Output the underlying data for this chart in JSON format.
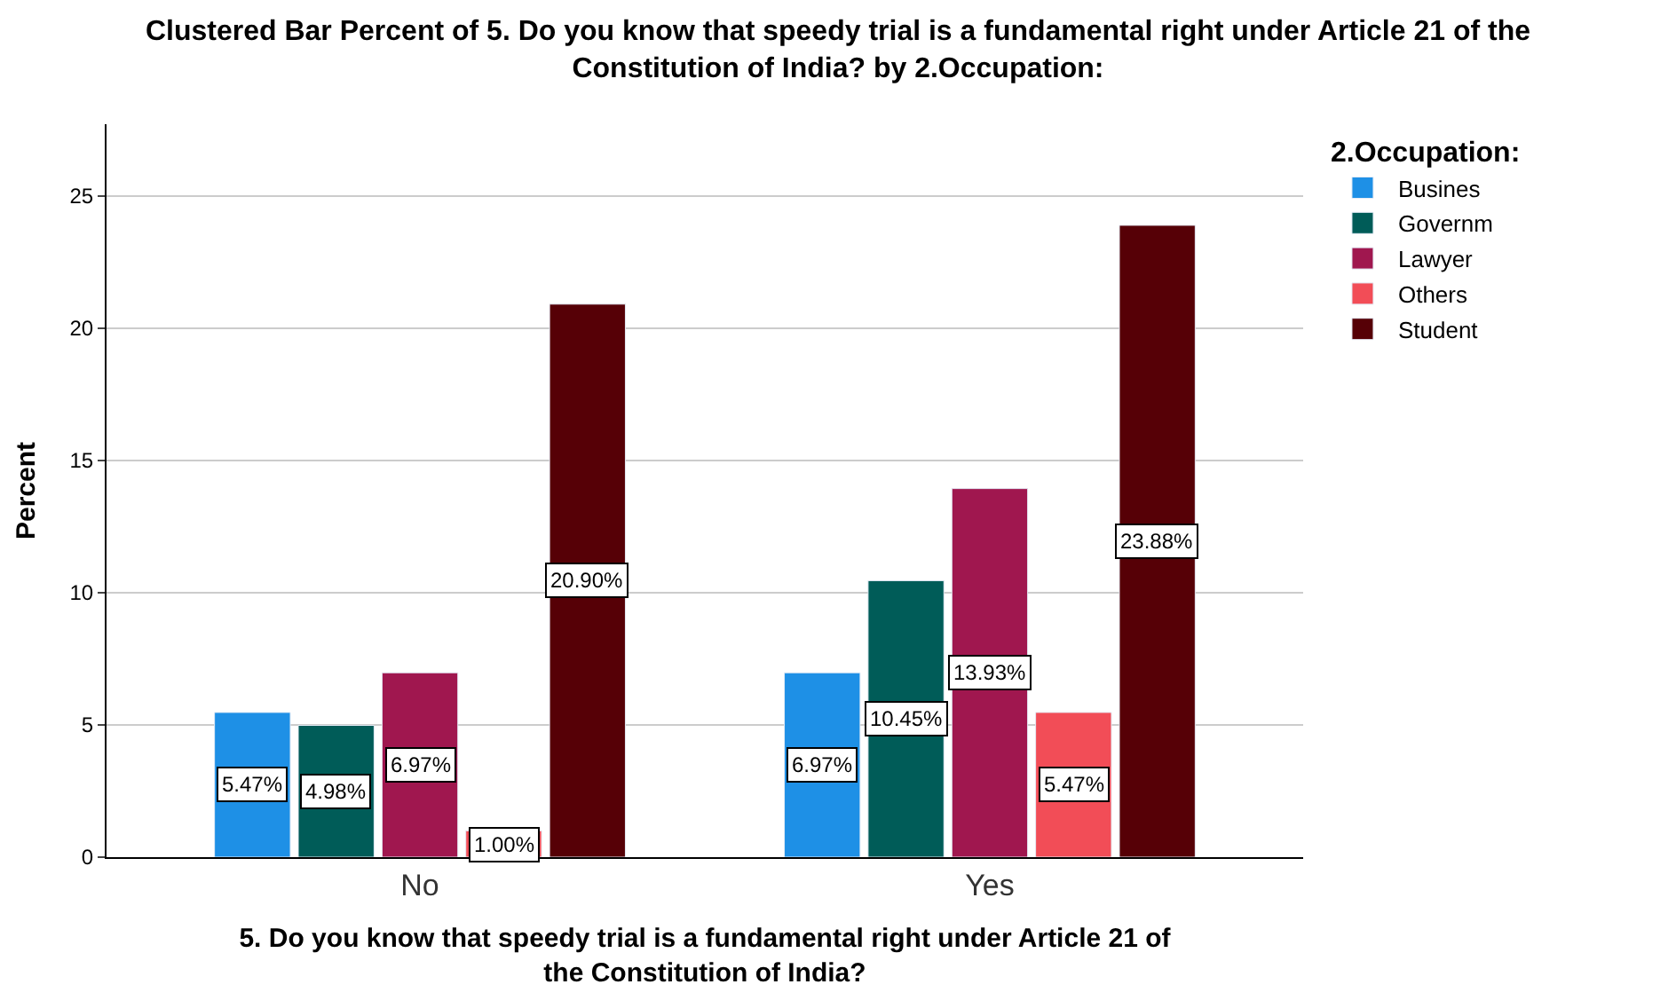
{
  "chart_data": {
    "type": "bar",
    "title": "Clustered Bar Percent of 5. Do you know that speedy trial is a fundamental right under Article 21 of the Constitution of India? by 2.Occupation:",
    "xlabel": "5. Do you know that speedy trial is a fundamental right under Article 21 of the Constitution of India?",
    "ylabel": "Percent",
    "legend_title": "2.Occupation:",
    "categories": [
      "No",
      "Yes"
    ],
    "series": [
      {
        "name": "Busines",
        "color": "#1e90e6",
        "values": [
          5.47,
          6.97
        ],
        "value_labels": [
          "5.47%",
          "6.97%"
        ]
      },
      {
        "name": "Governm",
        "color": "#005c58",
        "values": [
          4.98,
          10.45
        ],
        "value_labels": [
          "4.98%",
          "10.45%"
        ]
      },
      {
        "name": "Lawyer",
        "color": "#a0174f",
        "values": [
          6.97,
          13.93
        ],
        "value_labels": [
          "6.97%",
          "13.93%"
        ]
      },
      {
        "name": "Others",
        "color": "#f24d57",
        "values": [
          1.0,
          5.47
        ],
        "value_labels": [
          "1.00%",
          "5.47%"
        ]
      },
      {
        "name": "Student",
        "color": "#560006",
        "values": [
          20.9,
          23.88
        ],
        "value_labels": [
          "20.90%",
          "23.88%"
        ]
      }
    ],
    "ylim": [
      0,
      27.7
    ],
    "yticks": [
      0,
      5,
      10,
      15,
      20,
      25
    ],
    "grid": "y",
    "legend": "top right"
  }
}
